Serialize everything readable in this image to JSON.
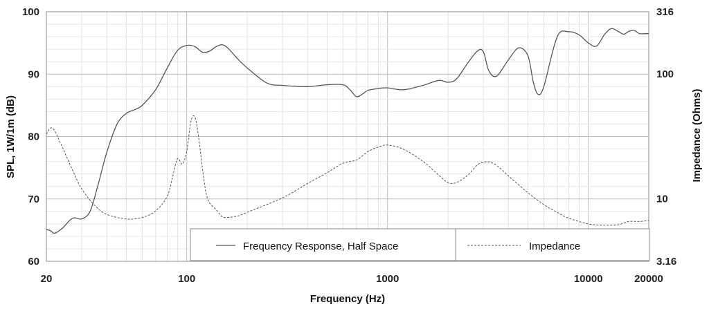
{
  "chart_data": {
    "type": "line",
    "xlabel": "Frequency (Hz)",
    "ylabel": "SPL, 1W/1m (dB)",
    "y2label": "Impedance (Ohms)",
    "x_scale": "log",
    "y2_scale": "log",
    "xlim": [
      20,
      20000
    ],
    "ylim": [
      60,
      100
    ],
    "y2lim": [
      3.16,
      316
    ],
    "grid": true,
    "legend_position": "bottom-right",
    "x_ticks": [
      {
        "value": 20,
        "label": "20"
      },
      {
        "value": 100,
        "label": "100"
      },
      {
        "value": 1000,
        "label": "1000"
      },
      {
        "value": 10000,
        "label": "10000"
      },
      {
        "value": 20000,
        "label": "20000"
      }
    ],
    "y_ticks": [
      {
        "value": 60,
        "label": "60"
      },
      {
        "value": 70,
        "label": "70"
      },
      {
        "value": 80,
        "label": "80"
      },
      {
        "value": 90,
        "label": "90"
      },
      {
        "value": 100,
        "label": "100"
      }
    ],
    "y2_ticks": [
      {
        "value": 3.16,
        "label": "3.16"
      },
      {
        "value": 10,
        "label": "10"
      },
      {
        "value": 100,
        "label": "100"
      },
      {
        "value": 316,
        "label": "316"
      }
    ],
    "series": [
      {
        "name": "Frequency Response, Half Space",
        "axis": "left",
        "style": "solid",
        "color": "#555555",
        "x": [
          20,
          21,
          22,
          24,
          27,
          30,
          33,
          36,
          40,
          45,
          50,
          55,
          60,
          70,
          80,
          90,
          100,
          110,
          120,
          130,
          140,
          150,
          160,
          180,
          200,
          250,
          300,
          400,
          500,
          600,
          650,
          700,
          750,
          800,
          900,
          1000,
          1200,
          1500,
          1800,
          2000,
          2200,
          2500,
          2800,
          3000,
          3200,
          3500,
          4000,
          4500,
          5000,
          5300,
          5600,
          6000,
          7000,
          8000,
          9000,
          10000,
          11000,
          12000,
          13000,
          14000,
          15000,
          16000,
          17000,
          18000,
          20000
        ],
        "values": [
          65.1,
          64.9,
          64.5,
          65.3,
          66.9,
          66.8,
          68.0,
          72.0,
          77.5,
          82.0,
          83.7,
          84.3,
          85.0,
          87.5,
          91.0,
          93.8,
          94.6,
          94.4,
          93.5,
          93.7,
          94.4,
          94.7,
          94.2,
          92.4,
          91.0,
          88.6,
          88.2,
          88.0,
          88.3,
          88.3,
          87.5,
          86.4,
          86.8,
          87.4,
          87.7,
          87.8,
          87.5,
          88.2,
          89.0,
          88.7,
          89.2,
          91.7,
          93.7,
          93.6,
          90.5,
          89.7,
          92.3,
          94.2,
          93.0,
          89.0,
          86.8,
          88.0,
          96.0,
          96.8,
          96.3,
          95.0,
          94.5,
          96.3,
          97.3,
          96.9,
          96.4,
          96.9,
          97.0,
          96.5,
          96.5
        ]
      },
      {
        "name": "Impedance",
        "axis": "right",
        "style": "dashed",
        "color": "#555555",
        "x": [
          20,
          21,
          22,
          24,
          27,
          30,
          35,
          40,
          50,
          60,
          70,
          80,
          85,
          90,
          95,
          100,
          105,
          110,
          115,
          120,
          125,
          130,
          140,
          150,
          160,
          180,
          200,
          300,
          400,
          500,
          600,
          700,
          800,
          900,
          1000,
          1200,
          1500,
          1800,
          2000,
          2200,
          2500,
          2800,
          3000,
          3200,
          3500,
          4000,
          5000,
          6000,
          7000,
          8000,
          10000,
          12000,
          14000,
          15000,
          16000,
          18000,
          20000
        ],
        "values": [
          33,
          37,
          35,
          26,
          17,
          12,
          8.8,
          7.5,
          6.9,
          7.1,
          8.0,
          10.5,
          15,
          21,
          19,
          24,
          42,
          45,
          30,
          17,
          11,
          9.3,
          8.2,
          7.2,
          7.1,
          7.3,
          7.8,
          10.2,
          13.3,
          16.2,
          19.3,
          20.5,
          24,
          26,
          27,
          25,
          20,
          15.5,
          13.5,
          13.5,
          15.4,
          18.7,
          19.6,
          19.8,
          18.5,
          15.3,
          11.2,
          9.0,
          7.8,
          7.0,
          6.3,
          6.15,
          6.2,
          6.4,
          6.6,
          6.6,
          6.7
        ]
      }
    ]
  }
}
